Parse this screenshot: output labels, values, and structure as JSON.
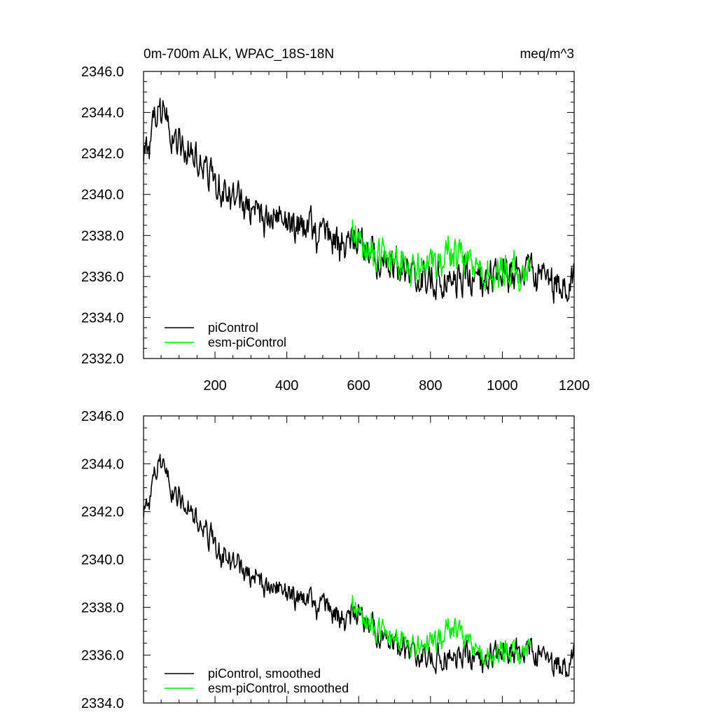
{
  "figure": {
    "title_left": "0m-700m ALK, WPAC_18S-18N",
    "title_right": "meq/m^3"
  },
  "chart_data": [
    {
      "type": "line",
      "title": "0m-700m ALK, WPAC_18S-18N",
      "units": "meq/m^3",
      "xlim": [
        1,
        1200
      ],
      "ylim": [
        2332,
        2346
      ],
      "x_ticks": [
        200,
        400,
        600,
        800,
        1000,
        1200
      ],
      "x_tick_labels": [
        "200",
        "400",
        "600",
        "800",
        "1000",
        "1200"
      ],
      "y_ticks": [
        2332,
        2334,
        2336,
        2338,
        2340,
        2342,
        2344,
        2346
      ],
      "y_tick_labels": [
        "2332.0",
        "2334.0",
        "2336.0",
        "2338.0",
        "2340.0",
        "2342.0",
        "2344.0",
        "2346.0"
      ],
      "legend_position": "bottom-left",
      "series": [
        {
          "name": "piControl",
          "color": "#000000",
          "x": [
            1,
            20,
            40,
            50,
            60,
            80,
            100,
            120,
            140,
            160,
            180,
            200,
            220,
            240,
            260,
            280,
            300,
            320,
            340,
            360,
            380,
            400,
            420,
            440,
            460,
            480,
            500,
            520,
            540,
            560,
            580,
            600,
            620,
            640,
            660,
            680,
            700,
            720,
            740,
            760,
            780,
            800,
            820,
            840,
            860,
            880,
            900,
            920,
            940,
            960,
            980,
            1000,
            1020,
            1040,
            1060,
            1080,
            1100,
            1120,
            1140,
            1160,
            1180,
            1200
          ],
          "y": [
            2342.0,
            2342.6,
            2343.6,
            2344.1,
            2343.6,
            2342.9,
            2342.6,
            2342.3,
            2341.9,
            2341.4,
            2341.0,
            2340.6,
            2340.2,
            2340.1,
            2339.8,
            2339.5,
            2339.2,
            2339.1,
            2338.9,
            2338.8,
            2338.7,
            2338.7,
            2338.5,
            2338.4,
            2338.2,
            2338.1,
            2338.0,
            2337.9,
            2337.6,
            2337.3,
            2337.6,
            2337.8,
            2337.5,
            2337.3,
            2336.9,
            2336.7,
            2336.5,
            2336.3,
            2336.1,
            2336.2,
            2336.0,
            2335.8,
            2336.0,
            2336.0,
            2336.0,
            2336.1,
            2336.1,
            2336.0,
            2335.8,
            2336.0,
            2336.0,
            2336.2,
            2336.1,
            2336.2,
            2335.9,
            2336.0,
            2335.8,
            2335.9,
            2335.6,
            2335.6,
            2335.7,
            2335.9
          ],
          "noise_amplitude": 0.9
        },
        {
          "name": "esm-piControl",
          "color": "#00ee00",
          "x": [
            581,
            600,
            620,
            640,
            660,
            680,
            700,
            720,
            740,
            760,
            780,
            800,
            820,
            840,
            860,
            880,
            900,
            920,
            940,
            960,
            980,
            1000,
            1020,
            1040,
            1060,
            1080
          ],
          "y": [
            2338.2,
            2337.9,
            2337.6,
            2337.3,
            2337.0,
            2336.8,
            2336.5,
            2336.6,
            2336.4,
            2336.3,
            2336.2,
            2336.3,
            2336.6,
            2336.8,
            2337.2,
            2337.0,
            2336.4,
            2336.0,
            2335.7,
            2335.8,
            2335.9,
            2336.1,
            2336.2,
            2336.0,
            2336.3,
            2336.4
          ],
          "noise_amplitude": 1.0
        }
      ]
    },
    {
      "type": "line",
      "xlim": [
        1,
        1200
      ],
      "ylim": [
        2334,
        2346
      ],
      "x_ticks": [
        200,
        400,
        600,
        800,
        1000,
        1200
      ],
      "y_ticks": [
        2334,
        2336,
        2338,
        2340,
        2342,
        2344,
        2346
      ],
      "y_tick_labels": [
        "2334.0",
        "2336.0",
        "2338.0",
        "2340.0",
        "2342.0",
        "2344.0",
        "2346.0"
      ],
      "legend_position": "bottom-left",
      "series": [
        {
          "name": "piControl, smoothed",
          "color": "#000000",
          "x": [
            1,
            20,
            40,
            50,
            60,
            80,
            100,
            120,
            140,
            160,
            180,
            200,
            220,
            240,
            260,
            280,
            300,
            320,
            340,
            360,
            380,
            400,
            420,
            440,
            460,
            480,
            500,
            520,
            540,
            560,
            580,
            600,
            620,
            640,
            660,
            680,
            700,
            720,
            740,
            760,
            780,
            800,
            820,
            840,
            860,
            880,
            900,
            920,
            940,
            960,
            980,
            1000,
            1020,
            1040,
            1060,
            1080,
            1100,
            1120,
            1140,
            1160,
            1180,
            1200
          ],
          "y": [
            2342.0,
            2342.6,
            2343.6,
            2344.1,
            2343.6,
            2342.9,
            2342.6,
            2342.3,
            2341.9,
            2341.4,
            2341.0,
            2340.6,
            2340.2,
            2340.1,
            2339.8,
            2339.5,
            2339.2,
            2339.1,
            2338.9,
            2338.8,
            2338.7,
            2338.7,
            2338.5,
            2338.4,
            2338.2,
            2338.1,
            2338.0,
            2337.9,
            2337.6,
            2337.3,
            2337.6,
            2337.8,
            2337.5,
            2337.3,
            2336.9,
            2336.7,
            2336.5,
            2336.3,
            2336.1,
            2336.2,
            2336.0,
            2335.8,
            2336.0,
            2336.0,
            2336.0,
            2336.1,
            2336.1,
            2336.0,
            2335.8,
            2336.0,
            2336.0,
            2336.2,
            2336.1,
            2336.2,
            2335.9,
            2336.0,
            2335.8,
            2335.9,
            2335.6,
            2335.6,
            2335.7,
            2335.9
          ],
          "noise_amplitude": 0.55
        },
        {
          "name": "esm-piControl, smoothed",
          "color": "#00ee00",
          "x": [
            581,
            600,
            620,
            640,
            660,
            680,
            700,
            720,
            740,
            760,
            780,
            800,
            820,
            840,
            860,
            880,
            900,
            920,
            940,
            960,
            980,
            1000,
            1020,
            1040,
            1060,
            1080
          ],
          "y": [
            2338.2,
            2337.9,
            2337.6,
            2337.3,
            2337.0,
            2336.8,
            2336.5,
            2336.6,
            2336.4,
            2336.3,
            2336.2,
            2336.3,
            2336.6,
            2336.8,
            2337.2,
            2337.0,
            2336.4,
            2336.0,
            2335.7,
            2335.8,
            2335.9,
            2336.1,
            2336.2,
            2336.0,
            2336.3,
            2336.4
          ],
          "noise_amplitude": 0.6
        }
      ]
    }
  ]
}
